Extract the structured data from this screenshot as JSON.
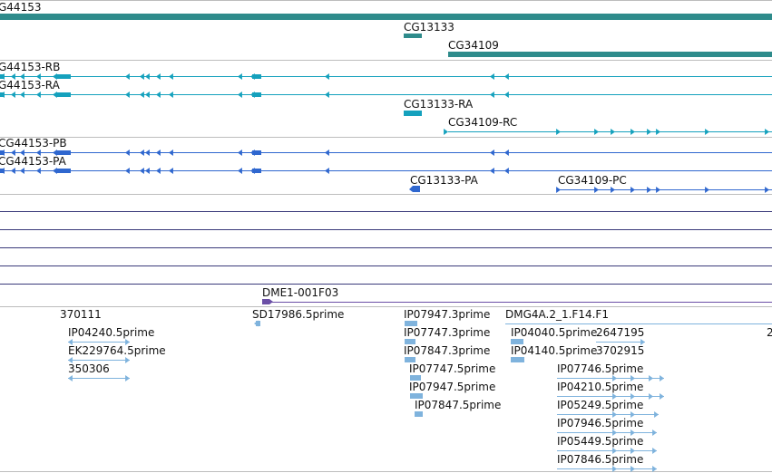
{
  "colors": {
    "gene": "#2e8b8b",
    "mrna": "#15a1bd",
    "cds": "#2f67cf",
    "est": "#7fb3dd",
    "clone": "#6b4fa6",
    "empty_track": "#3a3a7a",
    "sep": "#bdbdbd"
  },
  "tracks": {
    "genes": [
      {
        "label": "G44153"
      },
      {
        "label": "CG13133"
      },
      {
        "label": "CG34109"
      }
    ],
    "transcripts": [
      {
        "label": "G44153-RB"
      },
      {
        "label": "G44153-RA"
      },
      {
        "label": "CG13133-RA"
      },
      {
        "label": "CG34109-RC"
      }
    ],
    "cds": [
      {
        "label": "CG44153-PB"
      },
      {
        "label": "CG44153-PA"
      },
      {
        "label": "CG13133-PA"
      },
      {
        "label": "CG34109-PC"
      }
    ],
    "clones": [
      {
        "label": "DME1-001F03"
      }
    ],
    "ests": [
      {
        "label": "370111"
      },
      {
        "label": "SD17986.5prime"
      },
      {
        "label": "IP07947.3prime"
      },
      {
        "label": "DMG4A.2_1.F14.F1"
      },
      {
        "label": "IP04240.5prime"
      },
      {
        "label": "IP07747.3prime"
      },
      {
        "label": "IP04040.5prime"
      },
      {
        "label": "2647195"
      },
      {
        "label": "2"
      },
      {
        "label": "EK229764.5prime"
      },
      {
        "label": "IP07847.3prime"
      },
      {
        "label": "IP04140.5prime"
      },
      {
        "label": "3702915"
      },
      {
        "label": "350306"
      },
      {
        "label": "IP07747.5prime"
      },
      {
        "label": "IP07746.5prime"
      },
      {
        "label": "IP07947.5prime"
      },
      {
        "label": "IP04210.5prime"
      },
      {
        "label": "IP07847.5prime"
      },
      {
        "label": "IP05249.5prime"
      },
      {
        "label": "IP07946.5prime"
      },
      {
        "label": "IP05449.5prime"
      },
      {
        "label": "IP07846.5prime"
      }
    ]
  }
}
